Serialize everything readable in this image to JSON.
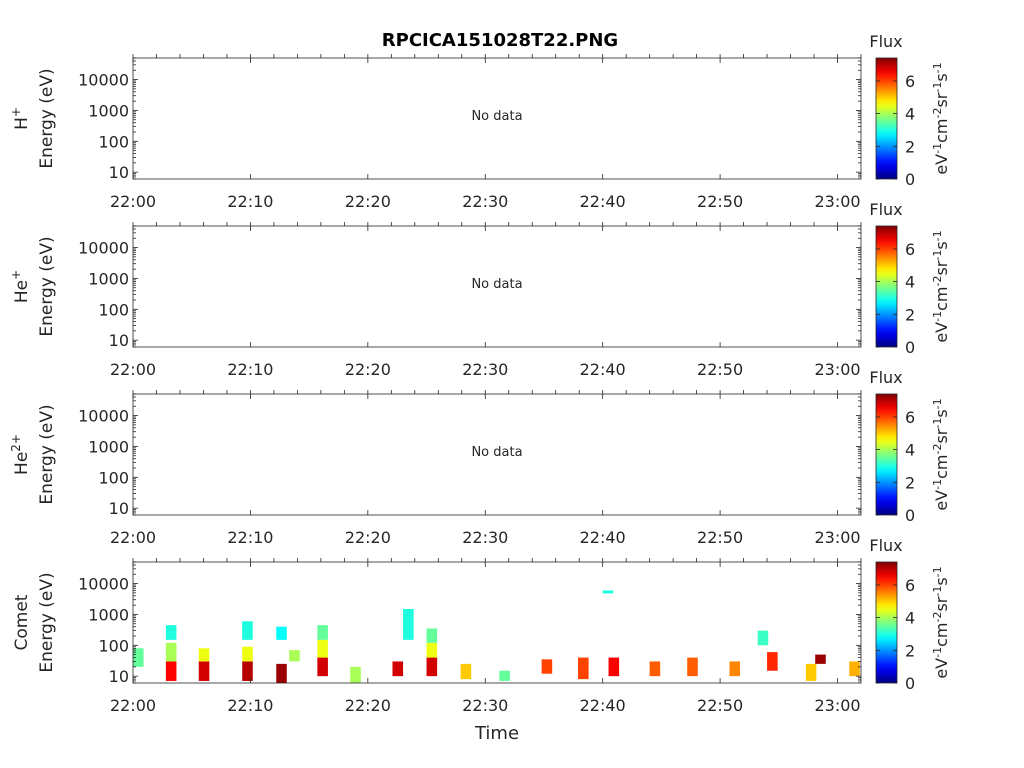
{
  "title": "RPCICA151028T22.PNG",
  "xlabel": "Time",
  "x_ticks": [
    "22:00",
    "22:10",
    "22:20",
    "22:30",
    "22:40",
    "22:50",
    "23:00"
  ],
  "colorbar": {
    "label": "Flux",
    "unit_parts": [
      "eV",
      "-1",
      "cm",
      "-2",
      "sr",
      "-1",
      "s",
      "-1"
    ],
    "ticks": [
      "0",
      "2",
      "4",
      "6"
    ],
    "range": [
      0,
      7.4
    ],
    "colormap": "jet"
  },
  "chart_data": [
    {
      "type": "heatmap",
      "species_base": "H",
      "species_sup": "+",
      "ylabel": "Energy (eV)",
      "y_ticks": [
        "10",
        "100",
        "1000",
        "10000"
      ],
      "y_scale": "log",
      "x_range": [
        "22:00",
        "23:02"
      ],
      "annotation": "No data",
      "blocks": []
    },
    {
      "type": "heatmap",
      "species_base": "He",
      "species_sup": "+",
      "ylabel": "Energy (eV)",
      "y_ticks": [
        "10",
        "100",
        "1000",
        "10000"
      ],
      "y_scale": "log",
      "x_range": [
        "22:00",
        "23:02"
      ],
      "annotation": "No data",
      "blocks": []
    },
    {
      "type": "heatmap",
      "species_base": "He",
      "species_sup": "2+",
      "ylabel": "Energy (eV)",
      "y_ticks": [
        "10",
        "100",
        "1000",
        "10000"
      ],
      "y_scale": "log",
      "x_range": [
        "22:00",
        "23:02"
      ],
      "annotation": "No data",
      "blocks": []
    },
    {
      "type": "heatmap",
      "species_base": "Comet",
      "species_sup": "",
      "ylabel": "Energy (eV)",
      "y_ticks": [
        "10",
        "100",
        "1000",
        "10000"
      ],
      "y_scale": "log",
      "x_range": [
        "22:00",
        "23:02"
      ],
      "annotation": "",
      "blocks": [
        {
          "t": 0.0,
          "e": [
            20,
            80
          ],
          "flux": 3.5
        },
        {
          "t": 2.8,
          "e": [
            7,
            30
          ],
          "flux": 6.5
        },
        {
          "t": 2.8,
          "e": [
            30,
            120
          ],
          "flux": 4.0
        },
        {
          "t": 2.8,
          "e": [
            150,
            450
          ],
          "flux": 3.0
        },
        {
          "t": 5.6,
          "e": [
            7,
            30
          ],
          "flux": 6.8
        },
        {
          "t": 5.6,
          "e": [
            30,
            80
          ],
          "flux": 4.5
        },
        {
          "t": 9.3,
          "e": [
            7,
            30
          ],
          "flux": 7.0
        },
        {
          "t": 9.3,
          "e": [
            30,
            90
          ],
          "flux": 4.5
        },
        {
          "t": 9.3,
          "e": [
            150,
            600
          ],
          "flux": 3.0
        },
        {
          "t": 12.2,
          "e": [
            6,
            25
          ],
          "flux": 7.2
        },
        {
          "t": 12.2,
          "e": [
            150,
            400
          ],
          "flux": 2.8
        },
        {
          "t": 13.3,
          "e": [
            30,
            70
          ],
          "flux": 4.0
        },
        {
          "t": 15.7,
          "e": [
            10,
            40
          ],
          "flux": 6.8
        },
        {
          "t": 15.7,
          "e": [
            40,
            150
          ],
          "flux": 4.5
        },
        {
          "t": 15.7,
          "e": [
            150,
            450
          ],
          "flux": 3.5
        },
        {
          "t": 18.5,
          "e": [
            6,
            20
          ],
          "flux": 4.0
        },
        {
          "t": 22.1,
          "e": [
            10,
            30
          ],
          "flux": 6.8
        },
        {
          "t": 23.0,
          "e": [
            150,
            1500
          ],
          "flux": 3.0
        },
        {
          "t": 25.0,
          "e": [
            10,
            40
          ],
          "flux": 6.8
        },
        {
          "t": 25.0,
          "e": [
            40,
            120
          ],
          "flux": 4.5
        },
        {
          "t": 25.0,
          "e": [
            120,
            350
          ],
          "flux": 3.5
        },
        {
          "t": 27.9,
          "e": [
            8,
            25
          ],
          "flux": 5.0
        },
        {
          "t": 31.2,
          "e": [
            7,
            15
          ],
          "flux": 3.5
        },
        {
          "t": 34.8,
          "e": [
            12,
            35
          ],
          "flux": 6.0
        },
        {
          "t": 37.9,
          "e": [
            8,
            40
          ],
          "flux": 6.0
        },
        {
          "t": 40.5,
          "e": [
            10,
            40
          ],
          "flux": 6.5
        },
        {
          "t": 44.0,
          "e": [
            10,
            30
          ],
          "flux": 5.8
        },
        {
          "t": 40.0,
          "e": [
            5000,
            6000
          ],
          "flux": 3.0
        },
        {
          "t": 47.2,
          "e": [
            10,
            40
          ],
          "flux": 5.8
        },
        {
          "t": 50.8,
          "e": [
            10,
            30
          ],
          "flux": 5.5
        },
        {
          "t": 54.0,
          "e": [
            15,
            60
          ],
          "flux": 6.2
        },
        {
          "t": 53.2,
          "e": [
            100,
            300
          ],
          "flux": 3.2
        },
        {
          "t": 57.3,
          "e": [
            7,
            25
          ],
          "flux": 5.0
        },
        {
          "t": 58.1,
          "e": [
            25,
            50
          ],
          "flux": 7.2
        },
        {
          "t": 61.0,
          "e": [
            10,
            30
          ],
          "flux": 5.2
        }
      ]
    }
  ]
}
